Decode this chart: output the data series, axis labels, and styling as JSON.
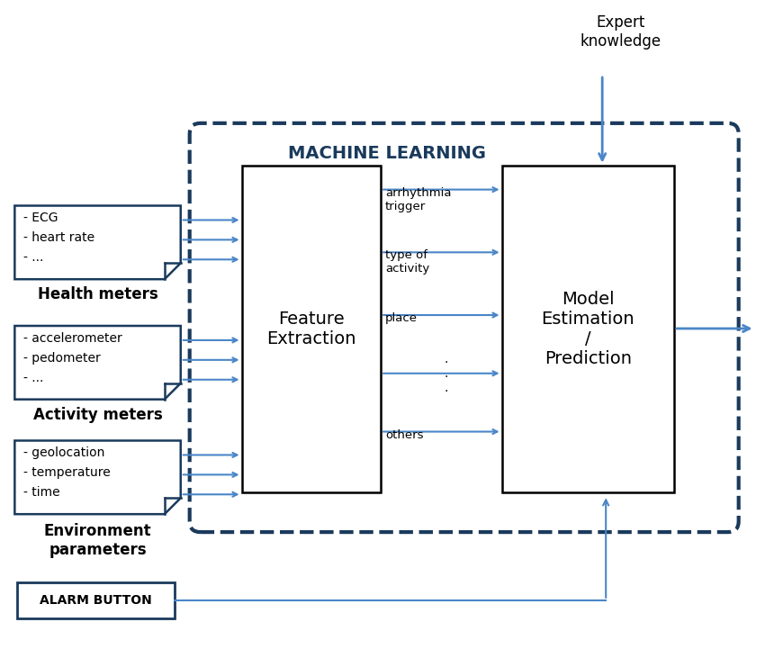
{
  "bg_color": "#ffffff",
  "arrow_color": "#4a86c8",
  "dark_color": "#1a3a5c",
  "health_lines": [
    "- ECG",
    "- heart rate",
    "- ..."
  ],
  "activity_lines": [
    "- accelerometer",
    "- pedometer",
    "- ..."
  ],
  "environment_lines": [
    "- geolocation",
    "- temperature",
    "- time"
  ],
  "health_label": "Health meters",
  "activity_label": "Activity meters",
  "environment_label": "Environment\nparameters",
  "feature_title": "Feature\nExtraction",
  "model_title": "Model\nEstimation\n/\nPrediction",
  "ml_label": "MACHINE LEARNING",
  "expert_label": "Expert\nknowledge",
  "alarm_label": "ALARM BUTTON",
  "feat_arrow_labels": [
    "arrhythmia\ntrigger",
    "type of\nactivity",
    "place",
    ".\n.\n.",
    "others"
  ],
  "figw": 8.5,
  "figh": 7.21,
  "dpi": 100
}
